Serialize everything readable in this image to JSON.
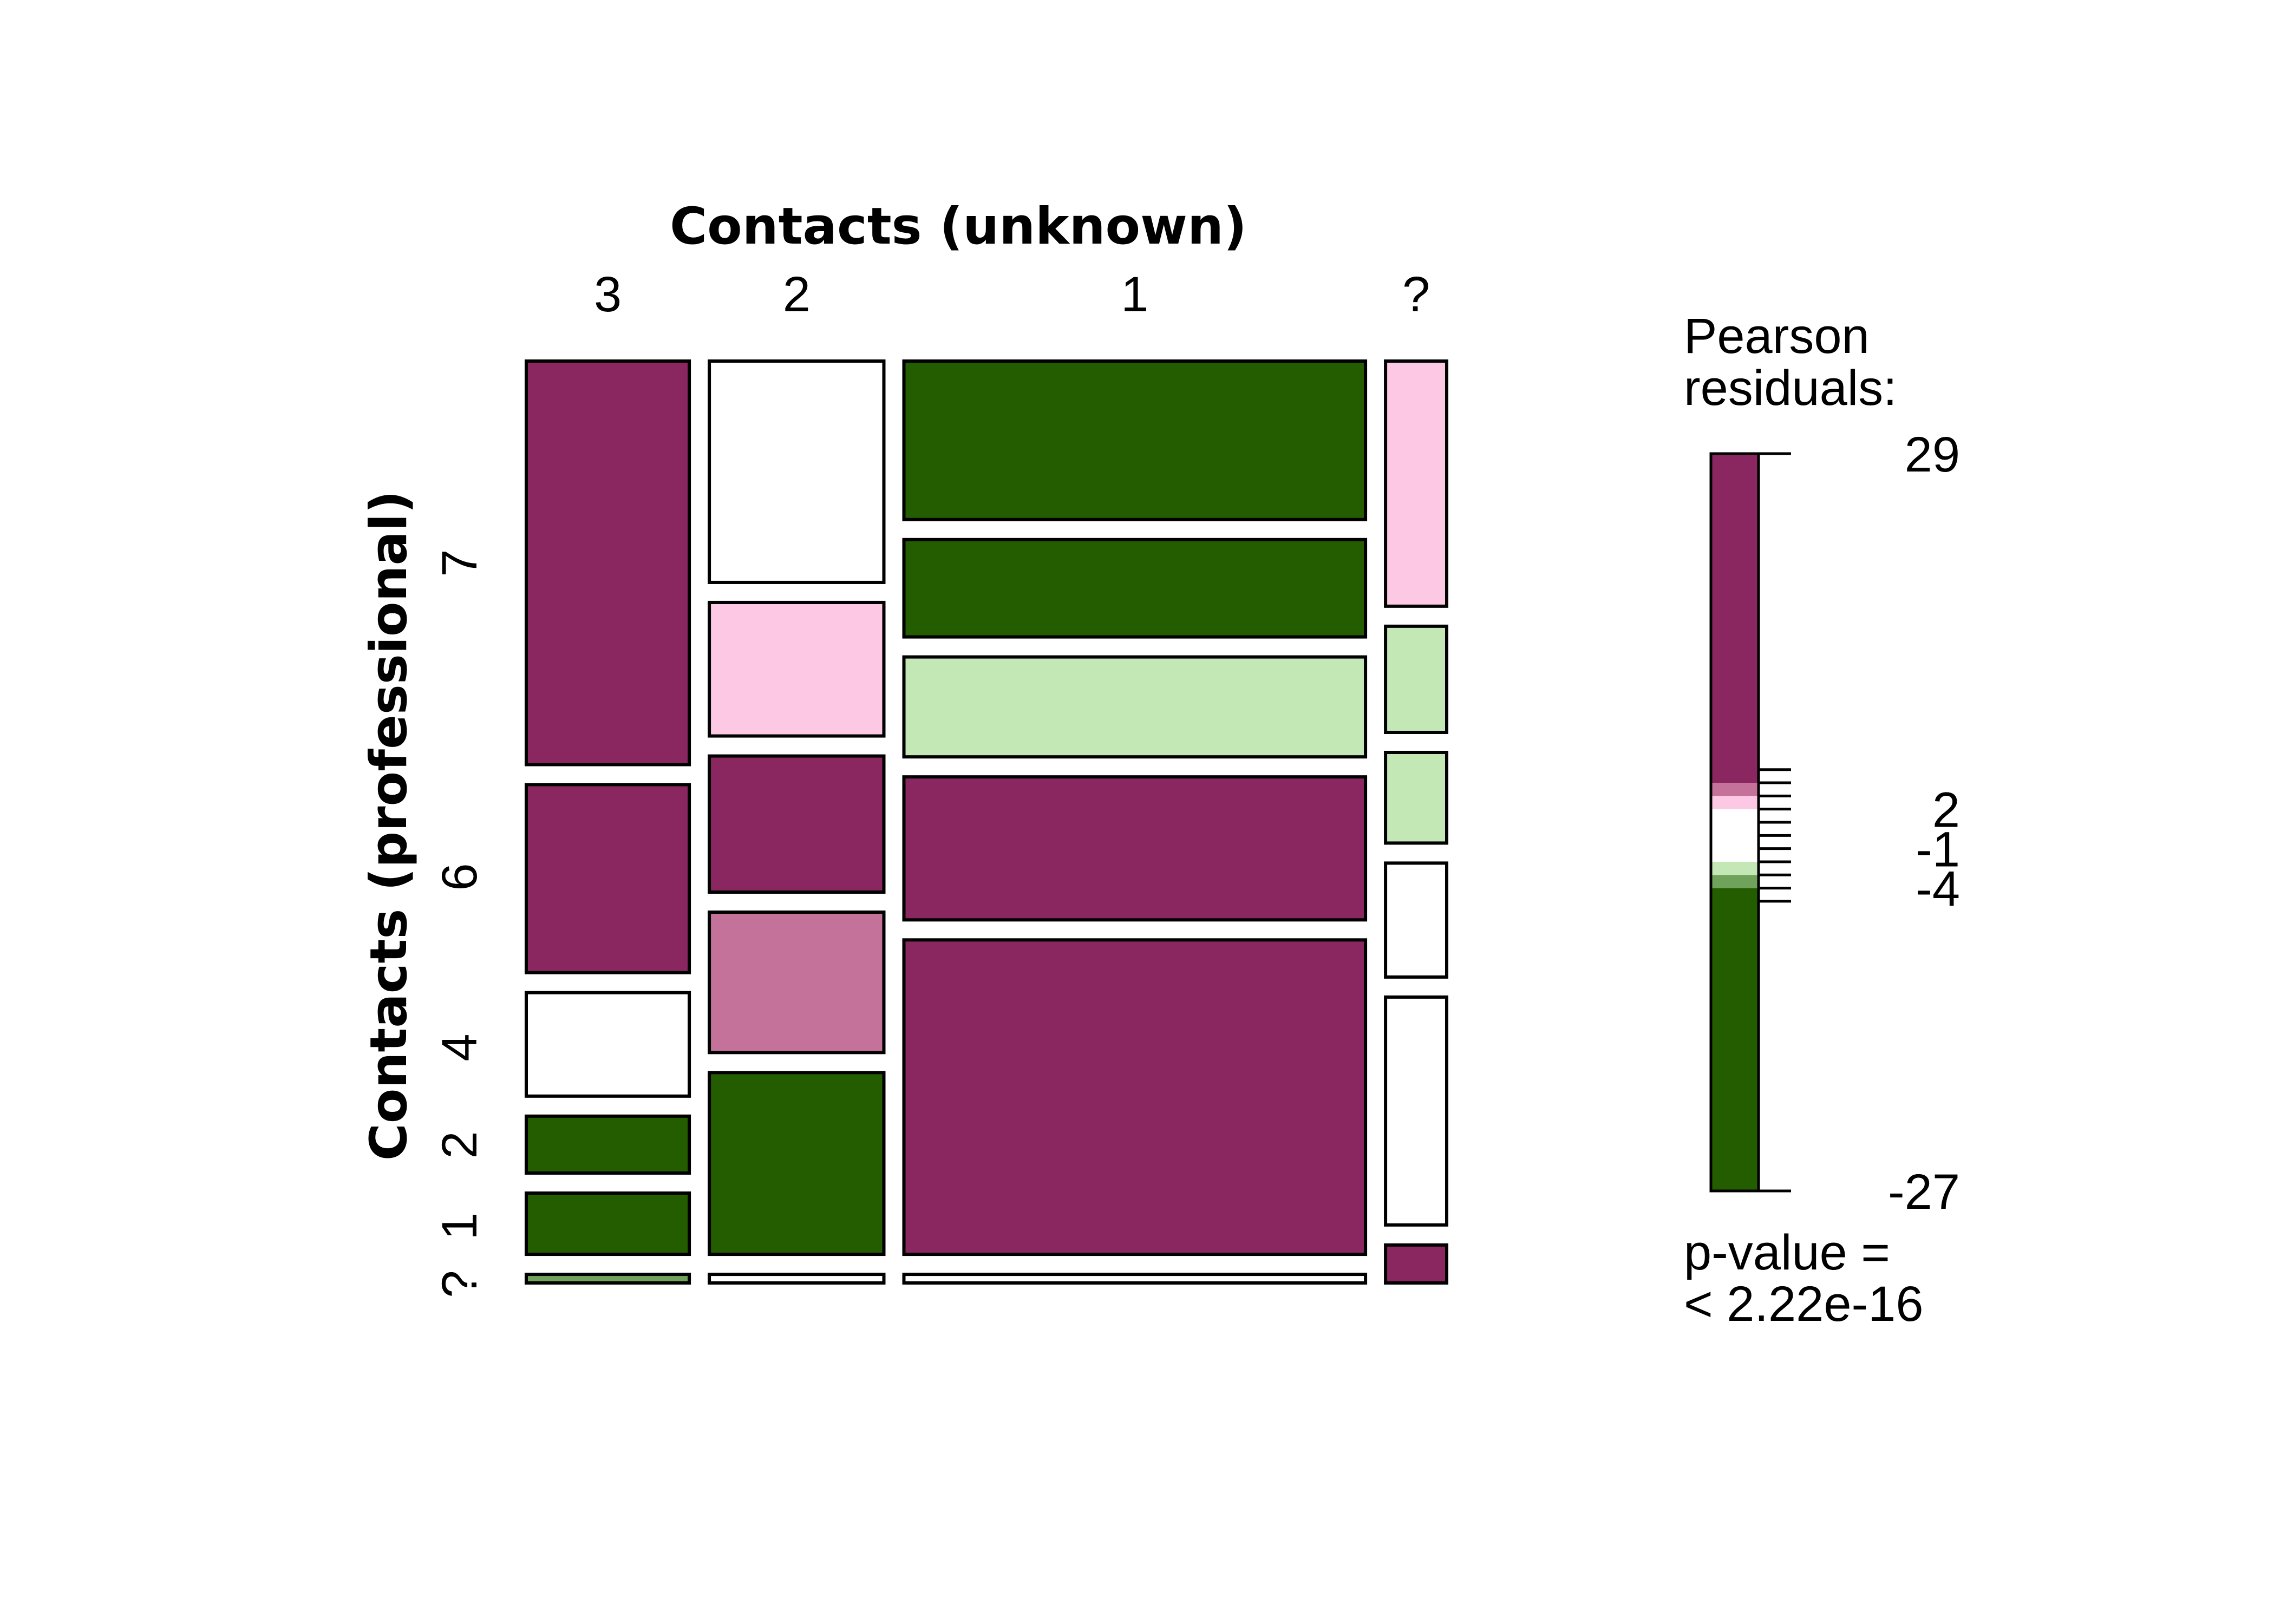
{
  "chart_data": {
    "type": "mosaic",
    "xlabel": "Contacts (unknown)",
    "ylabel": "Contacts (professional)",
    "columns": [
      "3",
      "2",
      "1",
      "?"
    ],
    "column_shares": [
      0.184,
      0.197,
      0.521,
      0.069
    ],
    "legend": {
      "title_line1": "Pearson",
      "title_line2": "residuals:",
      "max": 29,
      "min": -27,
      "tick_values": [
        29,
        2,
        -1,
        -4,
        -27
      ],
      "tick_labels": [
        "29",
        "2",
        "-1",
        "-4",
        "-27"
      ],
      "bands": [
        {
          "from": 4,
          "to": 29,
          "color": "#8b2760"
        },
        {
          "from": 3,
          "to": 4,
          "color": "#c4729a"
        },
        {
          "from": 2,
          "to": 3,
          "color": "#fcc8e4"
        },
        {
          "from": -2,
          "to": 2,
          "color": "#ffffff"
        },
        {
          "from": -3,
          "to": -2,
          "color": "#c3e8b6"
        },
        {
          "from": -4,
          "to": -3,
          "color": "#6fa35b"
        },
        {
          "from": -27,
          "to": -4,
          "color": "#245d00"
        }
      ],
      "pvalue_line1": "p-value =",
      "pvalue_line2": "< 2.22e-16"
    },
    "cells": [
      {
        "col": "3",
        "segments": [
          {
            "row": "7",
            "share": 0.468,
            "color": "#8b2760",
            "shade": "high positive"
          },
          {
            "row": "6",
            "share": 0.218,
            "color": "#8b2760",
            "shade": "high positive"
          },
          {
            "row": "4",
            "share": 0.12,
            "color": "#ffffff",
            "shade": "neutral"
          },
          {
            "row": "2",
            "share": 0.066,
            "color": "#245d00",
            "shade": "high negative"
          },
          {
            "row": "1",
            "share": 0.071,
            "color": "#245d00",
            "shade": "high negative"
          },
          {
            "row": "?",
            "share": 0.01,
            "color": "#6fa35b",
            "shade": "negative"
          }
        ]
      },
      {
        "col": "2",
        "segments": [
          {
            "row": "7",
            "share": 0.257,
            "color": "#ffffff",
            "shade": "neutral"
          },
          {
            "row": "7",
            "share": 0.155,
            "color": "#fcc8e4",
            "shade": "positive"
          },
          {
            "row": "6",
            "share": 0.158,
            "color": "#8b2760",
            "shade": "high positive"
          },
          {
            "row": "4",
            "share": 0.163,
            "color": "#c4729a",
            "shade": "mid positive"
          },
          {
            "row": "2",
            "share": 0.211,
            "color": "#245d00",
            "shade": "high negative"
          },
          {
            "row": "?",
            "share": 0.01,
            "color": "#ffffff",
            "shade": "neutral"
          }
        ]
      },
      {
        "col": "1",
        "segments": [
          {
            "row": "7",
            "share": 0.184,
            "color": "#245d00",
            "shade": "high negative"
          },
          {
            "row": "7",
            "share": 0.113,
            "color": "#245d00",
            "shade": "high negative"
          },
          {
            "row": "7",
            "share": 0.116,
            "color": "#c3e8b6",
            "shade": "negative"
          },
          {
            "row": "6",
            "share": 0.166,
            "color": "#8b2760",
            "shade": "high positive"
          },
          {
            "row": "4",
            "share": 0.365,
            "color": "#8b2760",
            "shade": "high positive"
          },
          {
            "row": "?",
            "share": 0.01,
            "color": "#ffffff",
            "shade": "neutral"
          }
        ]
      },
      {
        "col": "?",
        "segments": [
          {
            "row": "7",
            "share": 0.284,
            "color": "#fcc8e4",
            "shade": "positive"
          },
          {
            "row": "7",
            "share": 0.123,
            "color": "#c3e8b6",
            "shade": "negative"
          },
          {
            "row": "6",
            "share": 0.105,
            "color": "#c3e8b6",
            "shade": "negative"
          },
          {
            "row": "6",
            "share": 0.132,
            "color": "#ffffff",
            "shade": "neutral"
          },
          {
            "row": "4",
            "share": 0.264,
            "color": "#ffffff",
            "shade": "neutral"
          },
          {
            "row": "?",
            "share": 0.044,
            "color": "#8b2760",
            "shade": "high positive"
          }
        ]
      }
    ],
    "row_labels": [
      "7",
      "6",
      "4",
      "2",
      "1",
      "?"
    ]
  }
}
